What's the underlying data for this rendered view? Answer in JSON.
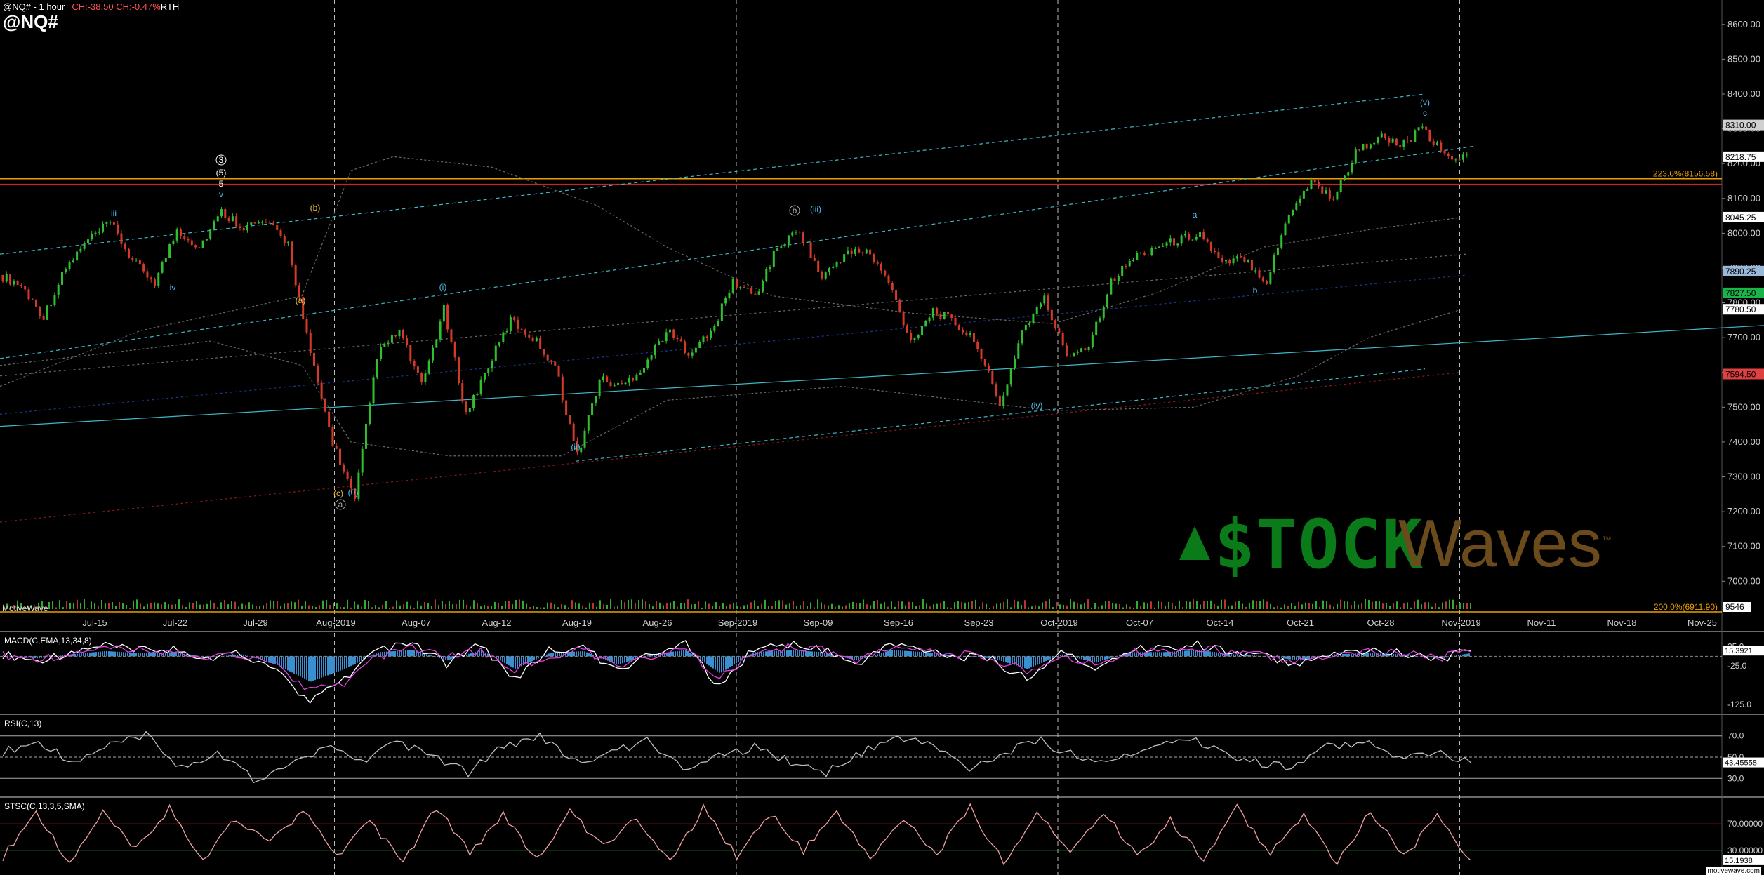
{
  "header": {
    "symbol_interval": "@NQ# - 1 hour",
    "change": "CH:-38.50 CH:-0.47%",
    "session": "RTH",
    "big_symbol": "@NQ#"
  },
  "watermark": {
    "part1": "$TOCK",
    "part2": "Waves",
    "tm": "™"
  },
  "platform_label": "MotiveWave",
  "footer": "motivewave.com",
  "chart_data": [
    {
      "type": "candlestick",
      "title": "@NQ# - 1 hour",
      "price_axis": {
        "ticks": [
          "8600.00",
          "8500.00",
          "8400.00",
          "8300.00",
          "8200.00",
          "8100.00",
          "8000.00",
          "7900.00",
          "7800.00",
          "7700.00",
          "7600.00",
          "7500.00",
          "7400.00",
          "7300.00",
          "7200.00",
          "7100.00",
          "7000.00"
        ],
        "ylim": [
          6911.9,
          8650
        ]
      },
      "time_axis": {
        "labels": [
          "Jul-15",
          "Jul-22",
          "Jul-29",
          "Aug-2019",
          "Aug-07",
          "Aug-12",
          "Aug-19",
          "Aug-26",
          "Sep-2019",
          "Sep-09",
          "Sep-16",
          "Sep-23",
          "Oct-2019",
          "Oct-07",
          "Oct-14",
          "Oct-21",
          "Oct-28",
          "Nov-2019",
          "Nov-11",
          "Nov-18",
          "Nov-25"
        ],
        "month_separators": [
          "Aug-2019",
          "Sep-2019",
          "Oct-2019",
          "Nov-2019"
        ]
      },
      "price_markers": [
        {
          "value": "8310.00",
          "color": "#d0d0d0"
        },
        {
          "value": "8218.75",
          "color": "#ffffff"
        },
        {
          "value": "8045.25",
          "color": "#ffffff"
        },
        {
          "value": "7890.25",
          "color": "#9ab8d8"
        },
        {
          "value": "7827.50",
          "color": "#19b54a"
        },
        {
          "value": "7780.50",
          "color": "#ffffff"
        },
        {
          "value": "7594.50",
          "color": "#e04040"
        }
      ],
      "fib_levels": [
        {
          "label": "223.6%(8156.58)",
          "value": 8156.58,
          "color": "#e8a000"
        },
        {
          "label": "200.0%(6911.90)",
          "value": 6911.9,
          "color": "#e8a000"
        }
      ],
      "volume_marker": "9546",
      "wave_labels": [
        {
          "text": "iii",
          "color": "#4fc3f7"
        },
        {
          "text": "iv",
          "color": "#4fc3f7"
        },
        {
          "text": "3",
          "color": "#ffffff"
        },
        {
          "text": "(5)",
          "color": "#ffffff"
        },
        {
          "text": "5",
          "color": "#ffffff"
        },
        {
          "text": "v",
          "color": "#4fc3f7"
        },
        {
          "text": "(b)",
          "color": "#e8c040"
        },
        {
          "text": "(a)",
          "color": "#e8c040"
        },
        {
          "text": "(c)",
          "color": "#e8c040"
        },
        {
          "text": "(i)",
          "color": "#4fc3f7"
        },
        {
          "text": "(ii)",
          "color": "#4fc3f7"
        },
        {
          "text": "(0)",
          "color": "#4fc3f7"
        },
        {
          "text": "a",
          "color": "#aaaaaa"
        },
        {
          "text": "b",
          "color": "#aaaaaa"
        },
        {
          "text": "(iii)",
          "color": "#4fc3f7"
        },
        {
          "text": "(iv)",
          "color": "#4fc3f7"
        },
        {
          "text": "a",
          "color": "#4fc3f7"
        },
        {
          "text": "b",
          "color": "#4fc3f7"
        },
        {
          "text": "(v)",
          "color": "#4fc3f7"
        },
        {
          "text": "c",
          "color": "#4fc3f7"
        }
      ],
      "series": [
        {
          "name": "close",
          "values": [
            7880,
            7850,
            7760,
            7900,
            7980,
            8030,
            7920,
            7860,
            8010,
            7960,
            8060,
            8020,
            8030,
            7970,
            7650,
            7400,
            7230,
            7650,
            7720,
            7560,
            7780,
            7480,
            7620,
            7750,
            7700,
            7620,
            7360,
            7580,
            7560,
            7620,
            7720,
            7660,
            7710,
            7860,
            7820,
            7960,
            8010,
            7870,
            7940,
            7950,
            7860,
            7690,
            7780,
            7740,
            7680,
            7500,
            7720,
            7810,
            7650,
            7680,
            7860,
            7930,
            7960,
            7980,
            8000,
            7910,
            7930,
            7860,
            8060,
            8150,
            8100,
            8230,
            8280,
            8250,
            8300,
            8220,
            8218.75
          ]
        }
      ],
      "legend_position": "none",
      "grid": false
    },
    {
      "type": "line",
      "title": "MACD(C,EMA,13,34,8)",
      "ticks": [
        "25.0",
        "-25.0",
        "-125.0"
      ],
      "current_value": "15.3921",
      "series": [
        {
          "name": "MACD",
          "values": [
            5,
            -10,
            10,
            25,
            15,
            20,
            -5,
            10,
            -40,
            -120,
            -60,
            20,
            30,
            -20,
            30,
            -60,
            15,
            25,
            -40,
            10,
            30,
            -80,
            20,
            30,
            20,
            -20,
            30,
            20,
            0,
            -10,
            -60,
            10,
            -30,
            20,
            20,
            30,
            10,
            0,
            -20,
            10,
            15,
            10,
            -10,
            15
          ]
        },
        {
          "name": "Signal",
          "values": [
            3,
            -5,
            5,
            18,
            15,
            15,
            0,
            5,
            -25,
            -90,
            -70,
            0,
            20,
            -5,
            15,
            -35,
            0,
            18,
            -25,
            0,
            20,
            -55,
            5,
            22,
            18,
            -10,
            20,
            18,
            5,
            -5,
            -40,
            -5,
            -20,
            10,
            15,
            22,
            12,
            2,
            -12,
            5,
            12,
            10,
            -5,
            12
          ]
        }
      ]
    },
    {
      "type": "line",
      "title": "RSI(C,13)",
      "ticks": [
        "70.0",
        "50.0",
        "30.0"
      ],
      "current_value": "43.45558",
      "series": [
        {
          "name": "RSI",
          "values": [
            55,
            65,
            45,
            60,
            70,
            40,
            55,
            30,
            40,
            60,
            45,
            65,
            50,
            35,
            60,
            70,
            45,
            55,
            65,
            40,
            50,
            60,
            45,
            35,
            55,
            70,
            60,
            40,
            55,
            65,
            50,
            45,
            60,
            70,
            55,
            45,
            40,
            60,
            65,
            50,
            55,
            45
          ]
        }
      ]
    },
    {
      "type": "line",
      "title": "STSC(C,13,3,5,SMA)",
      "ticks": [
        "70.00000",
        "30.00000"
      ],
      "current_value": "15.1938",
      "series": [
        {
          "name": "%K",
          "values": [
            20,
            90,
            10,
            85,
            30,
            95,
            15,
            80,
            40,
            90,
            20,
            75,
            10,
            95,
            25,
            85,
            15,
            90,
            35,
            80,
            10,
            95,
            20,
            85,
            30,
            90,
            15,
            80,
            25,
            95,
            10,
            85,
            30,
            90,
            20,
            75,
            15,
            95,
            25,
            85,
            10,
            90,
            20,
            80,
            15
          ]
        }
      ]
    }
  ],
  "panel_titles": {
    "macd": "MACD(C,EMA,13,34,8)",
    "rsi": "RSI(C,13)",
    "stsc": "STSC(C,13,3,5,SMA)"
  }
}
